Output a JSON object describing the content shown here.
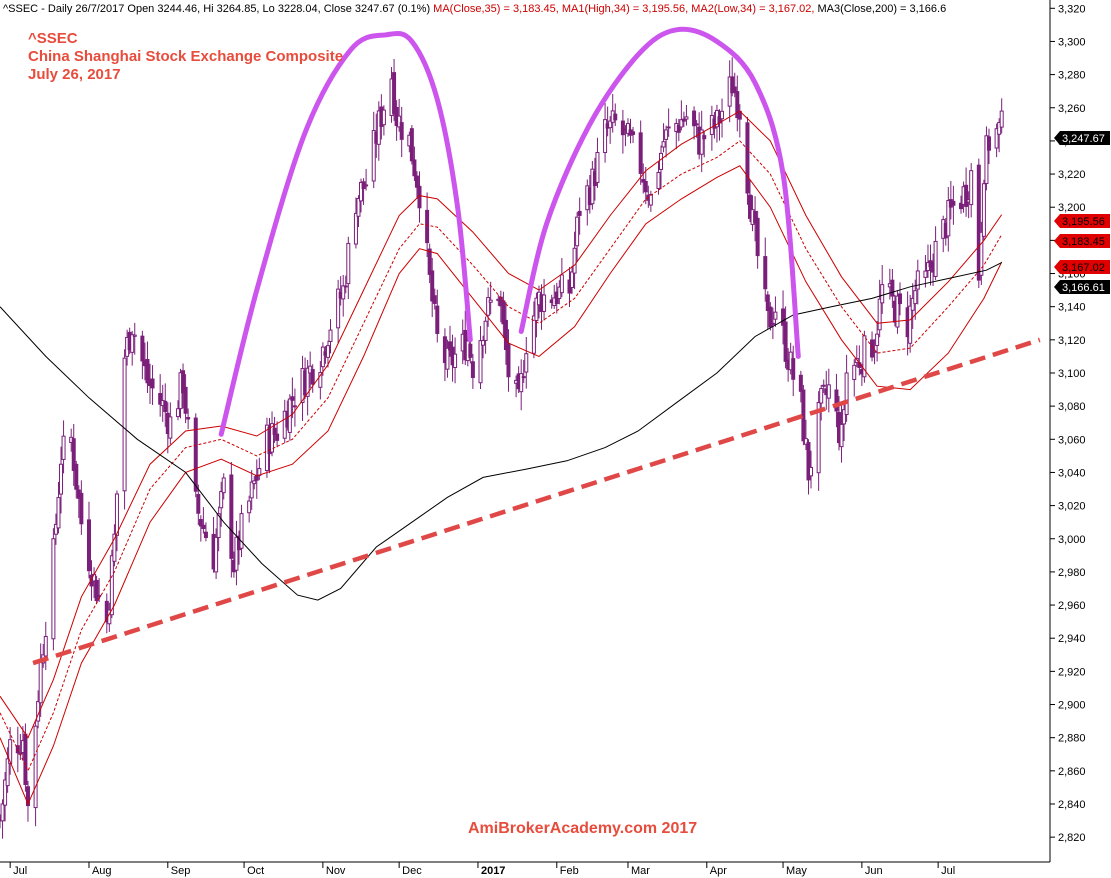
{
  "header": {
    "segments": [
      {
        "text": "^SSEC - Daily 26/7/2017 Open 3244.46, Hi 3264.85, Lo 3228.04, Close 3247.67 (0.1%) ",
        "color": "#000000"
      },
      {
        "text": "MA(Close,35) = 3,183.45, ",
        "color": "#cc0000"
      },
      {
        "text": "MA1(High,34) = 3,195.56, ",
        "color": "#cc0000"
      },
      {
        "text": "MA2(Low,34) = 3,167.02, ",
        "color": "#cc0000"
      },
      {
        "text": "MA3(Close,200) = 3,166.6",
        "color": "#000000"
      }
    ]
  },
  "title_lines": [
    "^SSEC",
    "China Shanghai Stock Exchange Composite",
    "July 26, 2017"
  ],
  "watermark": "AmiBrokerAcademy.com  2017",
  "colors": {
    "up": "#7a1f7a",
    "down": "#7a1f7a",
    "ma": "#cc0000",
    "ma200": "#000000",
    "arc": "#cc55ee",
    "trend": "#e04848",
    "title": "#e74c3c"
  },
  "chart_data": {
    "type": "candlestick",
    "ylim": [
      2805,
      3325
    ],
    "xlim": [
      "2016-06-27",
      "2017-08-14"
    ],
    "yticks": [
      "2,820",
      "2,840",
      "2,860",
      "2,880",
      "2,900",
      "2,920",
      "2,940",
      "2,960",
      "2,980",
      "3,000",
      "3,020",
      "3,040",
      "3,060",
      "3,080",
      "3,100",
      "3,120",
      "3,140",
      "3,160",
      "3,180",
      "3,200",
      "3,220",
      "3,240",
      "3,260",
      "3,280",
      "3,300",
      "3,320"
    ],
    "ytick_values": [
      2820,
      2840,
      2860,
      2880,
      2900,
      2920,
      2940,
      2960,
      2980,
      3000,
      3020,
      3040,
      3060,
      3080,
      3100,
      3120,
      3140,
      3160,
      3180,
      3200,
      3220,
      3240,
      3260,
      3280,
      3300,
      3320
    ],
    "xticks": [
      {
        "label": "Jul",
        "date": "2016-07-01"
      },
      {
        "label": "Aug",
        "date": "2016-08-01"
      },
      {
        "label": "Sep",
        "date": "2016-09-01"
      },
      {
        "label": "Oct",
        "date": "2016-10-01"
      },
      {
        "label": "Nov",
        "date": "2016-11-01"
      },
      {
        "label": "Dec",
        "date": "2016-12-01"
      },
      {
        "label": "2017",
        "date": "2017-01-01",
        "bold": true
      },
      {
        "label": "Feb",
        "date": "2017-02-01"
      },
      {
        "label": "Mar",
        "date": "2017-03-01"
      },
      {
        "label": "Apr",
        "date": "2017-04-01"
      },
      {
        "label": "May",
        "date": "2017-05-01"
      },
      {
        "label": "Jun",
        "date": "2017-06-01"
      },
      {
        "label": "Jul",
        "date": "2017-07-01"
      }
    ],
    "close_path": [
      [
        "2016-06-27",
        2830
      ],
      [
        "2016-07-01",
        2875
      ],
      [
        "2016-07-06",
        2880
      ],
      [
        "2016-07-08",
        2838
      ],
      [
        "2016-07-13",
        2925
      ],
      [
        "2016-07-18",
        2990
      ],
      [
        "2016-07-21",
        3050
      ],
      [
        "2016-07-25",
        3060
      ],
      [
        "2016-07-29",
        3010
      ],
      [
        "2016-08-03",
        2975
      ],
      [
        "2016-08-08",
        2950
      ],
      [
        "2016-08-11",
        3000
      ],
      [
        "2016-08-15",
        3110
      ],
      [
        "2016-08-18",
        3130
      ],
      [
        "2016-08-24",
        3095
      ],
      [
        "2016-08-30",
        3080
      ],
      [
        "2016-09-02",
        3070
      ],
      [
        "2016-09-07",
        3095
      ],
      [
        "2016-09-12",
        3020
      ],
      [
        "2016-09-19",
        2990
      ],
      [
        "2016-09-23",
        3030
      ],
      [
        "2016-09-27",
        2985
      ],
      [
        "2016-09-30",
        3005
      ],
      [
        "2016-10-10",
        3060
      ],
      [
        "2016-10-14",
        3065
      ],
      [
        "2016-10-20",
        3085
      ],
      [
        "2016-10-26",
        3100
      ],
      [
        "2016-10-31",
        3110
      ],
      [
        "2016-11-04",
        3130
      ],
      [
        "2016-11-09",
        3150
      ],
      [
        "2016-11-14",
        3205
      ],
      [
        "2016-11-18",
        3215
      ],
      [
        "2016-11-23",
        3250
      ],
      [
        "2016-11-28",
        3280
      ],
      [
        "2016-11-30",
        3255
      ],
      [
        "2016-12-05",
        3240
      ],
      [
        "2016-12-09",
        3210
      ],
      [
        "2016-12-13",
        3155
      ],
      [
        "2016-12-16",
        3120
      ],
      [
        "2016-12-20",
        3105
      ],
      [
        "2016-12-23",
        3110
      ],
      [
        "2016-12-28",
        3120
      ],
      [
        "2016-12-30",
        3105
      ],
      [
        "2017-01-04",
        3135
      ],
      [
        "2017-01-09",
        3150
      ],
      [
        "2017-01-13",
        3100
      ],
      [
        "2017-01-17",
        3080
      ],
      [
        "2017-01-20",
        3120
      ],
      [
        "2017-01-25",
        3145
      ],
      [
        "2017-02-06",
        3150
      ],
      [
        "2017-02-10",
        3200
      ],
      [
        "2017-02-15",
        3215
      ],
      [
        "2017-02-20",
        3245
      ],
      [
        "2017-02-24",
        3250
      ],
      [
        "2017-03-01",
        3240
      ],
      [
        "2017-03-06",
        3225
      ],
      [
        "2017-03-10",
        3205
      ],
      [
        "2017-03-15",
        3240
      ],
      [
        "2017-03-20",
        3250
      ],
      [
        "2017-03-24",
        3255
      ],
      [
        "2017-03-29",
        3240
      ],
      [
        "2017-04-05",
        3250
      ],
      [
        "2017-04-11",
        3275
      ],
      [
        "2017-04-14",
        3260
      ],
      [
        "2017-04-19",
        3190
      ],
      [
        "2017-04-25",
        3130
      ],
      [
        "2017-04-28",
        3140
      ],
      [
        "2017-05-03",
        3110
      ],
      [
        "2017-05-08",
        3080
      ],
      [
        "2017-05-11",
        3040
      ],
      [
        "2017-05-16",
        3080
      ],
      [
        "2017-05-19",
        3090
      ],
      [
        "2017-05-24",
        3060
      ],
      [
        "2017-05-26",
        3100
      ],
      [
        "2017-06-01",
        3110
      ],
      [
        "2017-06-06",
        3120
      ],
      [
        "2017-06-09",
        3150
      ],
      [
        "2017-06-14",
        3140
      ],
      [
        "2017-06-19",
        3130
      ],
      [
        "2017-06-22",
        3150
      ],
      [
        "2017-06-26",
        3155
      ],
      [
        "2017-06-29",
        3170
      ],
      [
        "2017-07-04",
        3190
      ],
      [
        "2017-07-07",
        3200
      ],
      [
        "2017-07-12",
        3210
      ],
      [
        "2017-07-14",
        3220
      ],
      [
        "2017-07-17",
        3160
      ],
      [
        "2017-07-19",
        3225
      ],
      [
        "2017-07-21",
        3240
      ],
      [
        "2017-07-24",
        3245
      ],
      [
        "2017-07-26",
        3247.67
      ]
    ],
    "ma35": [
      [
        "2016-06-27",
        2895
      ],
      [
        "2016-07-08",
        2860
      ],
      [
        "2016-07-18",
        2895
      ],
      [
        "2016-07-29",
        2945
      ],
      [
        "2016-08-11",
        2980
      ],
      [
        "2016-08-25",
        3030
      ],
      [
        "2016-09-08",
        3055
      ],
      [
        "2016-09-22",
        3060
      ],
      [
        "2016-10-06",
        3050
      ],
      [
        "2016-10-20",
        3060
      ],
      [
        "2016-11-03",
        3085
      ],
      [
        "2016-11-17",
        3130
      ],
      [
        "2016-12-01",
        3175
      ],
      [
        "2016-12-09",
        3190
      ],
      [
        "2016-12-16",
        3188
      ],
      [
        "2016-12-30",
        3165
      ],
      [
        "2017-01-13",
        3140
      ],
      [
        "2017-01-25",
        3130
      ],
      [
        "2017-02-08",
        3145
      ],
      [
        "2017-02-22",
        3175
      ],
      [
        "2017-03-08",
        3205
      ],
      [
        "2017-03-22",
        3220
      ],
      [
        "2017-04-05",
        3230
      ],
      [
        "2017-04-14",
        3240
      ],
      [
        "2017-04-26",
        3220
      ],
      [
        "2017-05-10",
        3175
      ],
      [
        "2017-05-24",
        3140
      ],
      [
        "2017-06-07",
        3112
      ],
      [
        "2017-06-20",
        3115
      ],
      [
        "2017-07-05",
        3140
      ],
      [
        "2017-07-19",
        3165
      ],
      [
        "2017-07-26",
        3183.45
      ]
    ],
    "ma_high34": [
      [
        "2016-06-27",
        2905
      ],
      [
        "2016-07-08",
        2880
      ],
      [
        "2016-07-18",
        2915
      ],
      [
        "2016-07-29",
        2965
      ],
      [
        "2016-08-11",
        3000
      ],
      [
        "2016-08-25",
        3045
      ],
      [
        "2016-09-08",
        3065
      ],
      [
        "2016-09-22",
        3068
      ],
      [
        "2016-10-06",
        3062
      ],
      [
        "2016-10-20",
        3075
      ],
      [
        "2016-11-03",
        3105
      ],
      [
        "2016-11-17",
        3150
      ],
      [
        "2016-12-01",
        3195
      ],
      [
        "2016-12-09",
        3207
      ],
      [
        "2016-12-16",
        3205
      ],
      [
        "2016-12-30",
        3185
      ],
      [
        "2017-01-13",
        3160
      ],
      [
        "2017-01-25",
        3150
      ],
      [
        "2017-02-08",
        3165
      ],
      [
        "2017-02-22",
        3195
      ],
      [
        "2017-03-08",
        3222
      ],
      [
        "2017-03-22",
        3238
      ],
      [
        "2017-04-05",
        3250
      ],
      [
        "2017-04-14",
        3258
      ],
      [
        "2017-04-26",
        3240
      ],
      [
        "2017-05-10",
        3195
      ],
      [
        "2017-05-24",
        3158
      ],
      [
        "2017-06-07",
        3130
      ],
      [
        "2017-06-20",
        3132
      ],
      [
        "2017-07-05",
        3155
      ],
      [
        "2017-07-19",
        3180
      ],
      [
        "2017-07-26",
        3195.56
      ]
    ],
    "ma_low34": [
      [
        "2016-06-27",
        2880
      ],
      [
        "2016-07-08",
        2840
      ],
      [
        "2016-07-18",
        2875
      ],
      [
        "2016-07-29",
        2925
      ],
      [
        "2016-08-11",
        2960
      ],
      [
        "2016-08-25",
        3010
      ],
      [
        "2016-09-08",
        3040
      ],
      [
        "2016-09-22",
        3048
      ],
      [
        "2016-10-06",
        3038
      ],
      [
        "2016-10-20",
        3045
      ],
      [
        "2016-11-03",
        3065
      ],
      [
        "2016-11-17",
        3110
      ],
      [
        "2016-12-01",
        3160
      ],
      [
        "2016-12-09",
        3175
      ],
      [
        "2016-12-16",
        3172
      ],
      [
        "2016-12-30",
        3145
      ],
      [
        "2017-01-13",
        3118
      ],
      [
        "2017-01-25",
        3110
      ],
      [
        "2017-02-08",
        3128
      ],
      [
        "2017-02-22",
        3160
      ],
      [
        "2017-03-08",
        3190
      ],
      [
        "2017-03-22",
        3205
      ],
      [
        "2017-04-05",
        3218
      ],
      [
        "2017-04-14",
        3225
      ],
      [
        "2017-04-26",
        3200
      ],
      [
        "2017-05-10",
        3155
      ],
      [
        "2017-05-24",
        3120
      ],
      [
        "2017-06-07",
        3092
      ],
      [
        "2017-06-20",
        3090
      ],
      [
        "2017-07-05",
        3112
      ],
      [
        "2017-07-19",
        3145
      ],
      [
        "2017-07-26",
        3167.02
      ]
    ],
    "ma200": [
      [
        "2016-06-27",
        3140
      ],
      [
        "2016-07-15",
        3110
      ],
      [
        "2016-08-01",
        3085
      ],
      [
        "2016-08-20",
        3060
      ],
      [
        "2016-09-08",
        3040
      ],
      [
        "2016-09-23",
        3010
      ],
      [
        "2016-10-08",
        2985
      ],
      [
        "2016-10-22",
        2966
      ],
      [
        "2016-10-30",
        2963
      ],
      [
        "2016-11-08",
        2970
      ],
      [
        "2016-11-22",
        2995
      ],
      [
        "2016-12-06",
        3010
      ],
      [
        "2016-12-20",
        3025
      ],
      [
        "2017-01-03",
        3037
      ],
      [
        "2017-01-20",
        3042
      ],
      [
        "2017-02-05",
        3047
      ],
      [
        "2017-02-20",
        3055
      ],
      [
        "2017-03-05",
        3065
      ],
      [
        "2017-03-20",
        3082
      ],
      [
        "2017-04-05",
        3100
      ],
      [
        "2017-04-20",
        3122
      ],
      [
        "2017-05-05",
        3135
      ],
      [
        "2017-05-20",
        3140
      ],
      [
        "2017-06-05",
        3145
      ],
      [
        "2017-06-20",
        3152
      ],
      [
        "2017-07-05",
        3157
      ],
      [
        "2017-07-20",
        3162
      ],
      [
        "2017-07-26",
        3166.61
      ]
    ],
    "trendline": [
      [
        "2016-07-10",
        2925
      ],
      [
        "2017-08-10",
        3120
      ]
    ],
    "arcs": [
      [
        [
          "2016-09-22",
          3063
        ],
        [
          "2016-10-06",
          3150
        ],
        [
          "2016-10-25",
          3245
        ],
        [
          "2016-11-12",
          3295
        ],
        [
          "2016-11-26",
          3304
        ],
        [
          "2016-12-06",
          3300
        ],
        [
          "2016-12-16",
          3265
        ],
        [
          "2016-12-24",
          3200
        ],
        [
          "2016-12-29",
          3120
        ]
      ],
      [
        [
          "2017-01-18",
          3125
        ],
        [
          "2017-01-28",
          3190
        ],
        [
          "2017-02-14",
          3250
        ],
        [
          "2017-03-05",
          3292
        ],
        [
          "2017-03-20",
          3307
        ],
        [
          "2017-04-05",
          3300
        ],
        [
          "2017-04-20",
          3275
        ],
        [
          "2017-05-01",
          3220
        ],
        [
          "2017-05-07",
          3110
        ]
      ]
    ],
    "right_labels": [
      {
        "text": "3,247.67",
        "value": 3247.67,
        "bg": "#000000",
        "color": "#ffffff"
      },
      {
        "text": "3,195.56",
        "value": 3195.56,
        "bg": "#e00000",
        "color": "#000000"
      },
      {
        "text": "3,183.45",
        "value": 3183.45,
        "bg": "#e00000",
        "color": "#000000"
      },
      {
        "text": "3,167.02",
        "value": 3167.02,
        "bg": "#e00000",
        "color": "#000000"
      },
      {
        "text": "3,166.61",
        "value": 3166.61,
        "bg": "#000000",
        "color": "#ffffff"
      }
    ]
  }
}
